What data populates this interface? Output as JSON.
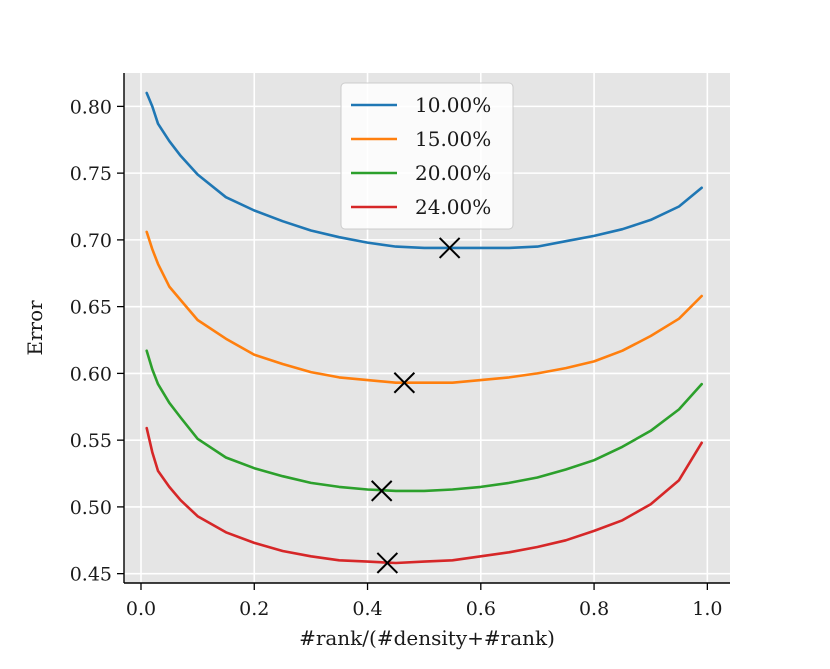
{
  "chart_data": {
    "type": "line",
    "title": "",
    "xlabel": "#rank/(#density+#rank)",
    "ylabel": "Error",
    "xlim": [
      -0.03,
      1.04
    ],
    "ylim": [
      0.443,
      0.825
    ],
    "xticks": [
      "0.0",
      "0.2",
      "0.4",
      "0.6",
      "0.8",
      "1.0"
    ],
    "yticks": [
      "0.45",
      "0.50",
      "0.55",
      "0.60",
      "0.65",
      "0.70",
      "0.75",
      "0.80"
    ],
    "xtick_values": [
      0.0,
      0.2,
      0.4,
      0.6,
      0.8,
      1.0
    ],
    "ytick_values": [
      0.45,
      0.5,
      0.55,
      0.6,
      0.65,
      0.7,
      0.75,
      0.8
    ],
    "grid": true,
    "background": "#e5e5e5",
    "legend_position": "top-center",
    "series": [
      {
        "name": "10.00%",
        "color": "#1f77b4",
        "x": [
          0.01,
          0.02,
          0.03,
          0.05,
          0.07,
          0.1,
          0.15,
          0.2,
          0.25,
          0.3,
          0.35,
          0.4,
          0.45,
          0.5,
          0.55,
          0.6,
          0.65,
          0.7,
          0.75,
          0.8,
          0.85,
          0.9,
          0.95,
          0.99
        ],
        "values": [
          0.81,
          0.8,
          0.787,
          0.774,
          0.763,
          0.749,
          0.732,
          0.722,
          0.714,
          0.707,
          0.702,
          0.698,
          0.695,
          0.694,
          0.694,
          0.694,
          0.694,
          0.695,
          0.699,
          0.703,
          0.708,
          0.715,
          0.725,
          0.739
        ]
      },
      {
        "name": "15.00%",
        "color": "#ff7f0e",
        "x": [
          0.01,
          0.02,
          0.03,
          0.05,
          0.07,
          0.1,
          0.15,
          0.2,
          0.25,
          0.3,
          0.35,
          0.4,
          0.45,
          0.5,
          0.55,
          0.6,
          0.65,
          0.7,
          0.75,
          0.8,
          0.85,
          0.9,
          0.95,
          0.99
        ],
        "values": [
          0.706,
          0.693,
          0.682,
          0.665,
          0.655,
          0.64,
          0.626,
          0.614,
          0.607,
          0.601,
          0.597,
          0.595,
          0.593,
          0.593,
          0.593,
          0.595,
          0.597,
          0.6,
          0.604,
          0.609,
          0.617,
          0.628,
          0.641,
          0.658
        ]
      },
      {
        "name": "20.00%",
        "color": "#2ca02c",
        "x": [
          0.01,
          0.02,
          0.03,
          0.05,
          0.07,
          0.1,
          0.15,
          0.2,
          0.25,
          0.3,
          0.35,
          0.4,
          0.45,
          0.5,
          0.55,
          0.6,
          0.65,
          0.7,
          0.75,
          0.8,
          0.85,
          0.9,
          0.95,
          0.99
        ],
        "values": [
          0.617,
          0.603,
          0.592,
          0.578,
          0.567,
          0.551,
          0.537,
          0.529,
          0.523,
          0.518,
          0.515,
          0.513,
          0.512,
          0.512,
          0.513,
          0.515,
          0.518,
          0.522,
          0.528,
          0.535,
          0.545,
          0.557,
          0.573,
          0.592
        ]
      },
      {
        "name": "24.00%",
        "color": "#d62728",
        "x": [
          0.01,
          0.02,
          0.03,
          0.05,
          0.07,
          0.1,
          0.15,
          0.2,
          0.25,
          0.3,
          0.35,
          0.4,
          0.45,
          0.5,
          0.55,
          0.6,
          0.65,
          0.7,
          0.75,
          0.8,
          0.85,
          0.9,
          0.95,
          0.99
        ],
        "values": [
          0.559,
          0.541,
          0.527,
          0.515,
          0.505,
          0.493,
          0.481,
          0.473,
          0.467,
          0.463,
          0.46,
          0.459,
          0.458,
          0.459,
          0.46,
          0.463,
          0.466,
          0.47,
          0.475,
          0.482,
          0.49,
          0.502,
          0.52,
          0.548
        ]
      }
    ],
    "markers": [
      {
        "series": "10.00%",
        "x": 0.545,
        "y": 0.694
      },
      {
        "series": "15.00%",
        "x": 0.465,
        "y": 0.593
      },
      {
        "series": "20.00%",
        "x": 0.425,
        "y": 0.512
      },
      {
        "series": "24.00%",
        "x": 0.435,
        "y": 0.458
      }
    ]
  }
}
